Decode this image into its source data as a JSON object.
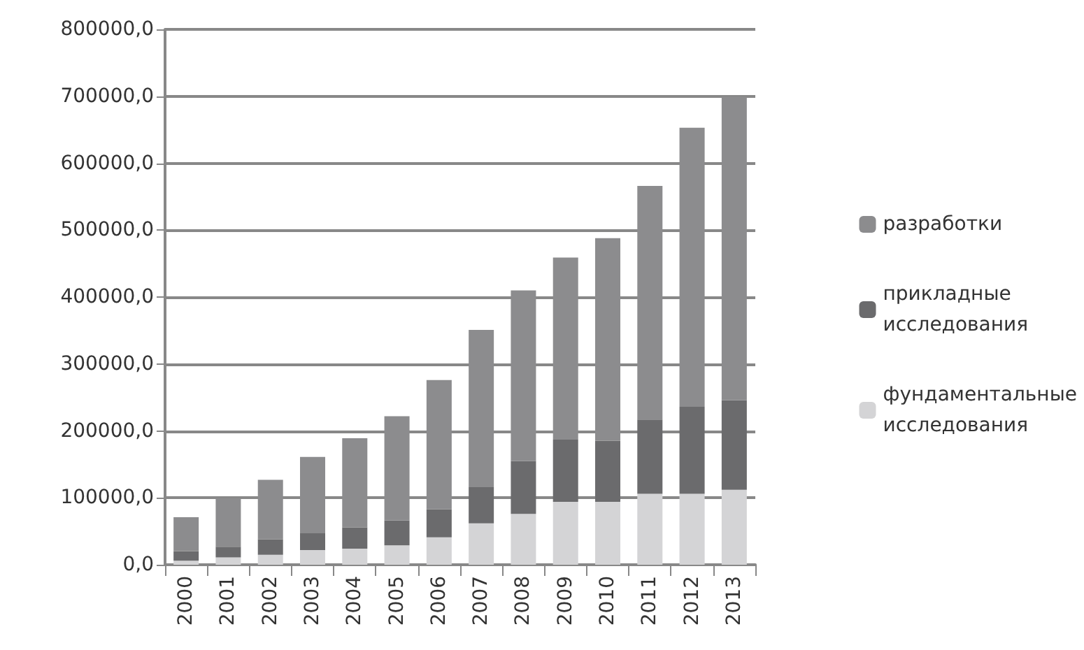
{
  "chart_data": {
    "type": "bar",
    "stacked": true,
    "categories": [
      "2000",
      "2001",
      "2002",
      "2003",
      "2004",
      "2005",
      "2006",
      "2007",
      "2008",
      "2009",
      "2010",
      "2011",
      "2012",
      "2013"
    ],
    "series": [
      {
        "name": "фундаментальные исследования",
        "color": "#d4d4d6",
        "values": [
          6000,
          11000,
          15000,
          22000,
          24000,
          29000,
          41000,
          62000,
          76000,
          94000,
          94000,
          106000,
          106000,
          112000
        ]
      },
      {
        "name": "прикладные исследования",
        "color": "#6b6b6d",
        "values": [
          14000,
          16000,
          23000,
          25000,
          32000,
          37000,
          42000,
          54000,
          79000,
          93000,
          91000,
          111000,
          130000,
          134000
        ]
      },
      {
        "name": "разработки",
        "color": "#8c8c8e",
        "values": [
          51000,
          72000,
          89000,
          114000,
          133000,
          156000,
          193000,
          235000,
          255000,
          272000,
          303000,
          349000,
          417000,
          453000
        ]
      }
    ],
    "ylim": [
      0,
      800000
    ],
    "yticks": [
      {
        "value": 0,
        "label": "0,0"
      },
      {
        "value": 100000,
        "label": "100000,0"
      },
      {
        "value": 200000,
        "label": "200000,0"
      },
      {
        "value": 300000,
        "label": "300000,0"
      },
      {
        "value": 400000,
        "label": "400000,0"
      },
      {
        "value": 500000,
        "label": "500000,0"
      },
      {
        "value": 600000,
        "label": "600000,0"
      },
      {
        "value": 700000,
        "label": "700000,0"
      },
      {
        "value": 800000,
        "label": "800000,0"
      }
    ],
    "grid": "y",
    "legend": "right"
  }
}
